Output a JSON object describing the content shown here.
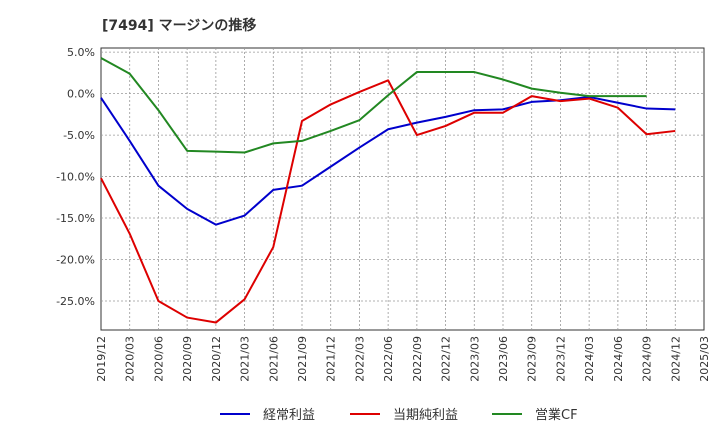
{
  "chart_data": {
    "type": "line",
    "title": "[7494]  マージンの推移",
    "xlabel": "",
    "ylabel": "",
    "ylim": [
      -28.5,
      5.5
    ],
    "yticks": [
      5,
      0,
      -5,
      -10,
      -15,
      -20,
      -25
    ],
    "ytick_labels": [
      "5.0%",
      "0.0%",
      "-5.0%",
      "-10.0%",
      "-15.0%",
      "-20.0%",
      "-25.0%"
    ],
    "x_labels": [
      "2019/12",
      "2020/03",
      "2020/06",
      "2020/09",
      "2020/12",
      "2021/03",
      "2021/06",
      "2021/09",
      "2021/12",
      "2022/03",
      "2022/06",
      "2022/09",
      "2022/12",
      "2023/03",
      "2023/06",
      "2023/09",
      "2023/12",
      "2024/03",
      "2024/06",
      "2024/09",
      "2024/12",
      "2025/03"
    ],
    "grid": true,
    "legend_position": "bottom",
    "series": [
      {
        "name": "経常利益",
        "color": "#0000cc",
        "values": [
          -0.5,
          -5.7,
          -11.1,
          -13.9,
          -15.8,
          -14.7,
          -11.6,
          -11.1,
          -8.8,
          -6.5,
          -4.3,
          -3.5,
          -2.8,
          -2.0,
          -1.9,
          -1.0,
          -0.8,
          -0.4,
          -1.1,
          -1.8,
          -1.9,
          null
        ]
      },
      {
        "name": "当期純利益",
        "color": "#dd0000",
        "values": [
          -10.2,
          -16.9,
          -25.0,
          -27.0,
          -27.6,
          -24.8,
          -18.5,
          -3.3,
          -1.3,
          0.2,
          1.6,
          -5.0,
          -3.9,
          -2.3,
          -2.3,
          -0.3,
          -0.9,
          -0.6,
          -1.7,
          -4.9,
          -4.5,
          null
        ]
      },
      {
        "name": "営業CF",
        "color": "#228822",
        "values": [
          4.3,
          2.4,
          -2.0,
          -6.9,
          -7.0,
          -7.1,
          -6.0,
          -5.7,
          -4.5,
          -3.2,
          -0.2,
          2.6,
          2.6,
          2.6,
          1.7,
          0.6,
          0.1,
          -0.3,
          -0.3,
          -0.3,
          null,
          null
        ]
      }
    ]
  }
}
